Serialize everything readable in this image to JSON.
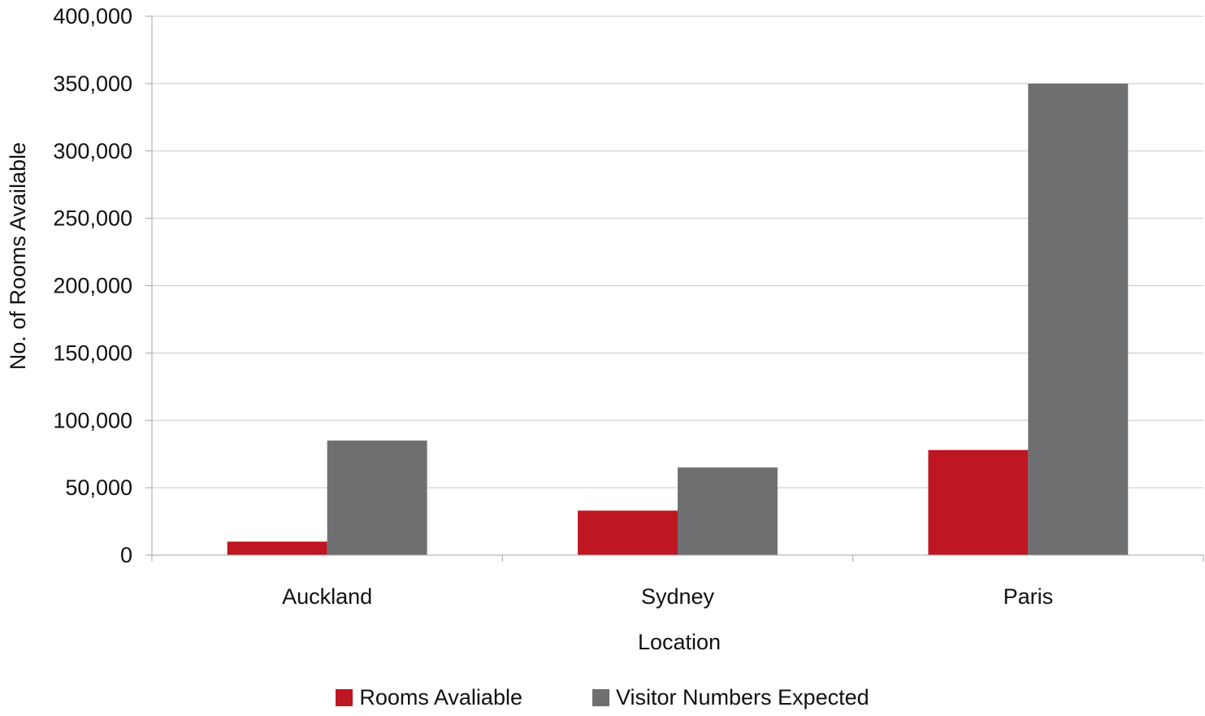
{
  "chart_data": {
    "type": "bar",
    "title": "",
    "xlabel": "Location",
    "ylabel": "No. of Rooms Available",
    "categories": [
      "Auckland",
      "Sydney",
      "Paris"
    ],
    "series": [
      {
        "name": "Rooms Avaliable",
        "color": "#be1622",
        "values": [
          10000,
          33000,
          78000
        ]
      },
      {
        "name": "Visitor Numbers Expected",
        "color": "#6d6f71",
        "values": [
          85000,
          65000,
          350000
        ]
      }
    ],
    "ylim": [
      0,
      400000
    ],
    "yticks": [
      0,
      50000,
      100000,
      150000,
      200000,
      250000,
      300000,
      350000,
      400000
    ],
    "ytick_labels": [
      "0",
      "50,000",
      "100,000",
      "150,000",
      "200,000",
      "250,000",
      "300,000",
      "350,000",
      "400,000"
    ],
    "grid": true,
    "legend_position": "bottom"
  }
}
